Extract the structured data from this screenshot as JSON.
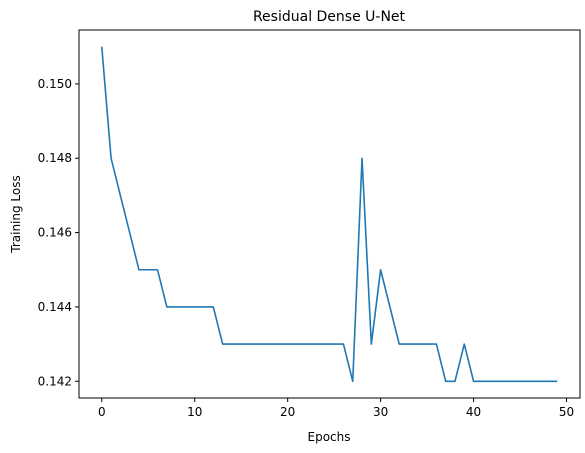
{
  "chart_data": {
    "type": "line",
    "title": "Residual Dense U-Net",
    "xlabel": "Epochs",
    "ylabel": "Training Loss",
    "xlim": [
      -2.45,
      51.45
    ],
    "ylim": [
      0.14155,
      0.15145
    ],
    "xticks": [
      0,
      10,
      20,
      30,
      40,
      50
    ],
    "yticks": [
      0.142,
      0.144,
      0.146,
      0.148,
      0.15
    ],
    "ytick_labels": [
      "0.142",
      "0.144",
      "0.146",
      "0.148",
      "0.150"
    ],
    "grid": false,
    "series": [
      {
        "color": "#1f77b4",
        "x": [
          0,
          1,
          2,
          3,
          4,
          5,
          6,
          7,
          8,
          9,
          10,
          11,
          12,
          13,
          14,
          15,
          16,
          17,
          18,
          19,
          20,
          21,
          22,
          23,
          24,
          25,
          26,
          27,
          28,
          29,
          30,
          31,
          32,
          33,
          34,
          35,
          36,
          37,
          38,
          39,
          40,
          41,
          42,
          43,
          44,
          45,
          46,
          47,
          48,
          49
        ],
        "y": [
          0.151,
          0.148,
          0.147,
          0.146,
          0.145,
          0.145,
          0.145,
          0.144,
          0.144,
          0.144,
          0.144,
          0.144,
          0.144,
          0.143,
          0.143,
          0.143,
          0.143,
          0.143,
          0.143,
          0.143,
          0.143,
          0.143,
          0.143,
          0.143,
          0.143,
          0.143,
          0.143,
          0.142,
          0.148,
          0.143,
          0.145,
          0.144,
          0.143,
          0.143,
          0.143,
          0.143,
          0.143,
          0.142,
          0.142,
          0.143,
          0.142,
          0.142,
          0.142,
          0.142,
          0.142,
          0.142,
          0.142,
          0.142,
          0.142,
          0.142
        ]
      }
    ]
  }
}
